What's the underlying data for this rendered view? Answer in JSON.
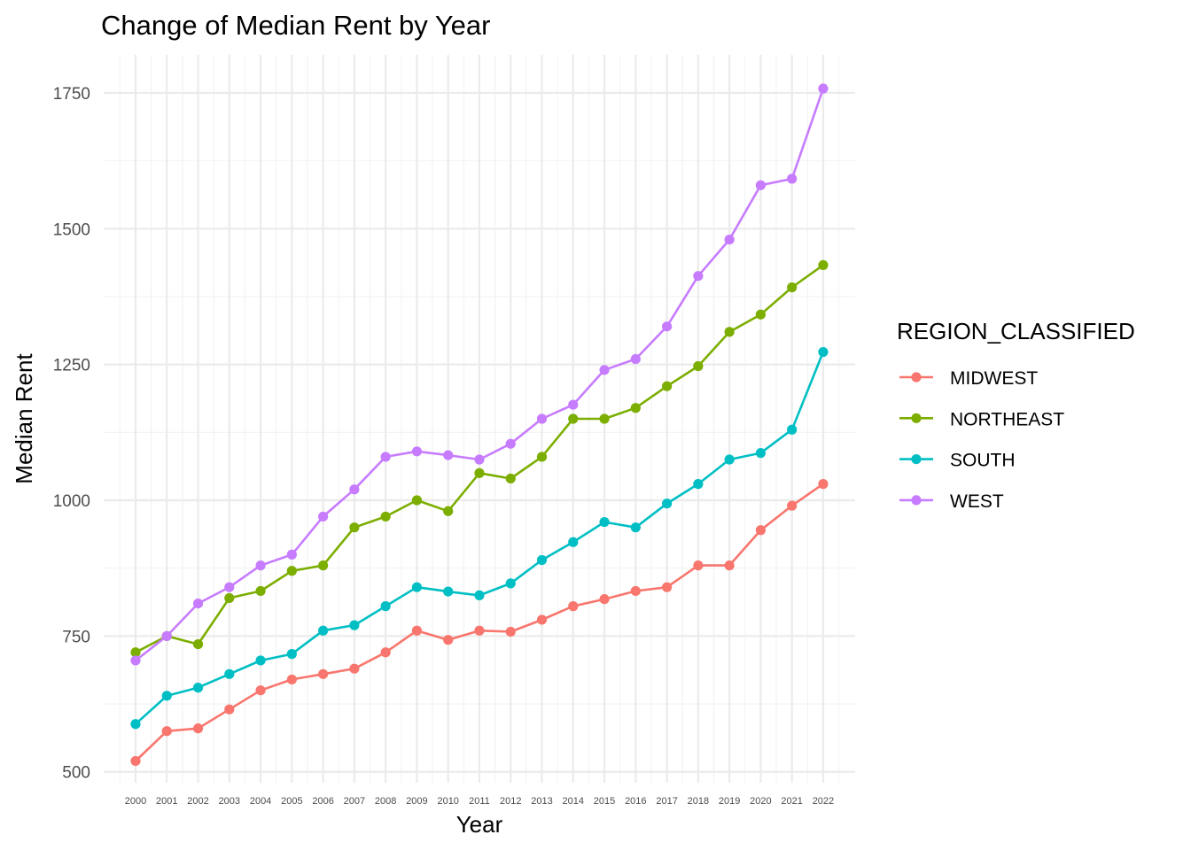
{
  "chart_data": {
    "type": "line",
    "title": "Change of Median Rent by Year",
    "xlabel": "Year",
    "ylabel": "Median Rent",
    "x": [
      "2000",
      "2001",
      "2002",
      "2003",
      "2004",
      "2005",
      "2006",
      "2007",
      "2008",
      "2009",
      "2010",
      "2011",
      "2012",
      "2013",
      "2014",
      "2015",
      "2016",
      "2017",
      "2018",
      "2019",
      "2020",
      "2021",
      "2022"
    ],
    "ylim": [
      480,
      1820
    ],
    "yticks": [
      "500",
      "750",
      "1000",
      "1250",
      "1500",
      "1750"
    ],
    "grid": true,
    "legend": {
      "title": "REGION_CLASSIFIED",
      "position": "right"
    },
    "series": [
      {
        "name": "MIDWEST",
        "color": "#F8766D",
        "values": [
          520,
          575,
          580,
          615,
          650,
          670,
          680,
          690,
          720,
          760,
          743,
          760,
          758,
          780,
          805,
          818,
          833,
          840,
          880,
          880,
          945,
          990,
          1030
        ]
      },
      {
        "name": "NORTHEAST",
        "color": "#7CAE00",
        "values": [
          720,
          750,
          735,
          820,
          833,
          870,
          880,
          950,
          970,
          1000,
          980,
          1050,
          1040,
          1080,
          1150,
          1150,
          1170,
          1210,
          1247,
          1310,
          1342,
          1392,
          1433
        ]
      },
      {
        "name": "SOUTH",
        "color": "#00BFC4",
        "values": [
          588,
          640,
          655,
          680,
          705,
          717,
          760,
          770,
          805,
          840,
          832,
          825,
          847,
          890,
          923,
          960,
          950,
          994,
          1030,
          1075,
          1087,
          1130,
          1273
        ]
      },
      {
        "name": "WEST",
        "color": "#C77CFF",
        "values": [
          705,
          750,
          810,
          840,
          880,
          900,
          970,
          1020,
          1080,
          1090,
          1083,
          1075,
          1104,
          1150,
          1176,
          1240,
          1260,
          1320,
          1413,
          1480,
          1580,
          1592,
          1758
        ]
      }
    ]
  }
}
